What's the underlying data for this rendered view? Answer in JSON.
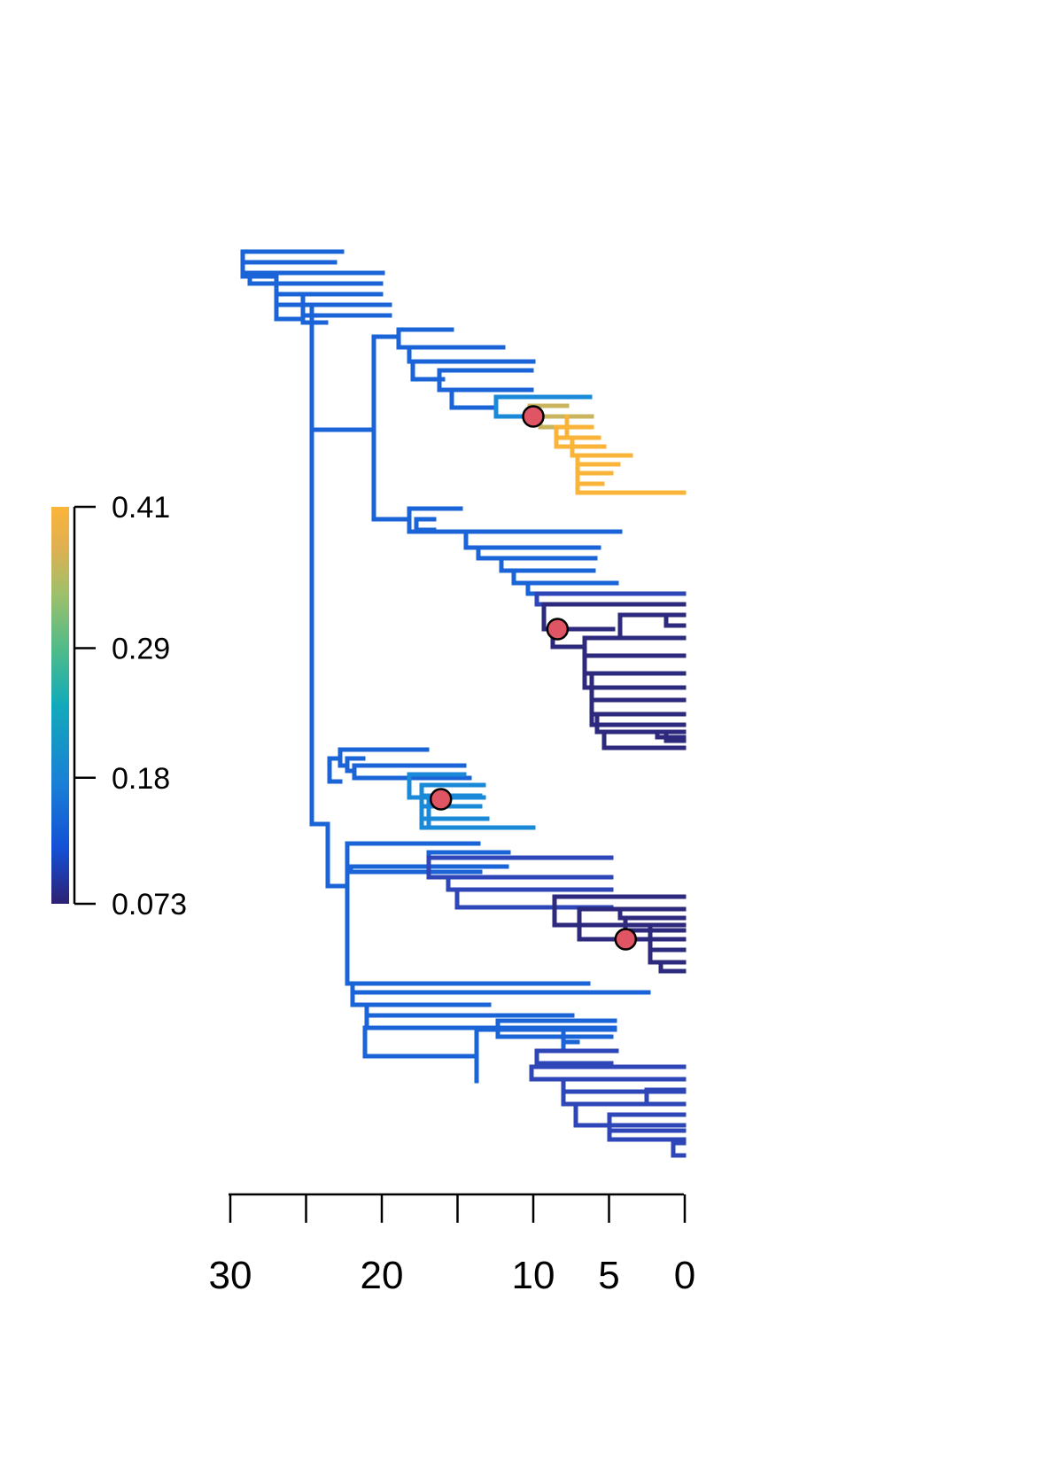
{
  "legend": {
    "tick_labels": [
      "0.41",
      "0.29",
      "0.18",
      "0.073"
    ],
    "tick_values": [
      0.41,
      0.29,
      0.18,
      0.073
    ],
    "range": [
      0.073,
      0.41
    ],
    "gradient_colors": [
      "#2d2173",
      "#1350d6",
      "#1a7fd6",
      "#12aabb",
      "#4fbb8a",
      "#9ec06a",
      "#e0b050",
      "#fbb43a"
    ]
  },
  "time_axis": {
    "tick_values": [
      30,
      25,
      20,
      15,
      10,
      5,
      0
    ],
    "tick_labels": [
      "30",
      "",
      "20",
      "",
      "10",
      "5",
      "0"
    ]
  },
  "colors": {
    "background_clade": "#1a64d8",
    "high_rate_clade": "#fbb43a",
    "transition_clade": "#c9b560",
    "low_rate_clade": "#2d2a7e",
    "mid_low_clade": "#2e46b8",
    "light_blue_clade": "#1a8ad8",
    "shift_marker_fill": "#e05563",
    "shift_marker_stroke": "#000000"
  },
  "rate_shifts": [
    {
      "age": 10.0,
      "clade": "high_rate_clade"
    },
    {
      "age": 8.4,
      "clade": "low_rate_clade"
    },
    {
      "age": 16.1,
      "clade": "light_blue_clade"
    },
    {
      "age": 3.9,
      "clade": "low_rate_clade"
    }
  ]
}
